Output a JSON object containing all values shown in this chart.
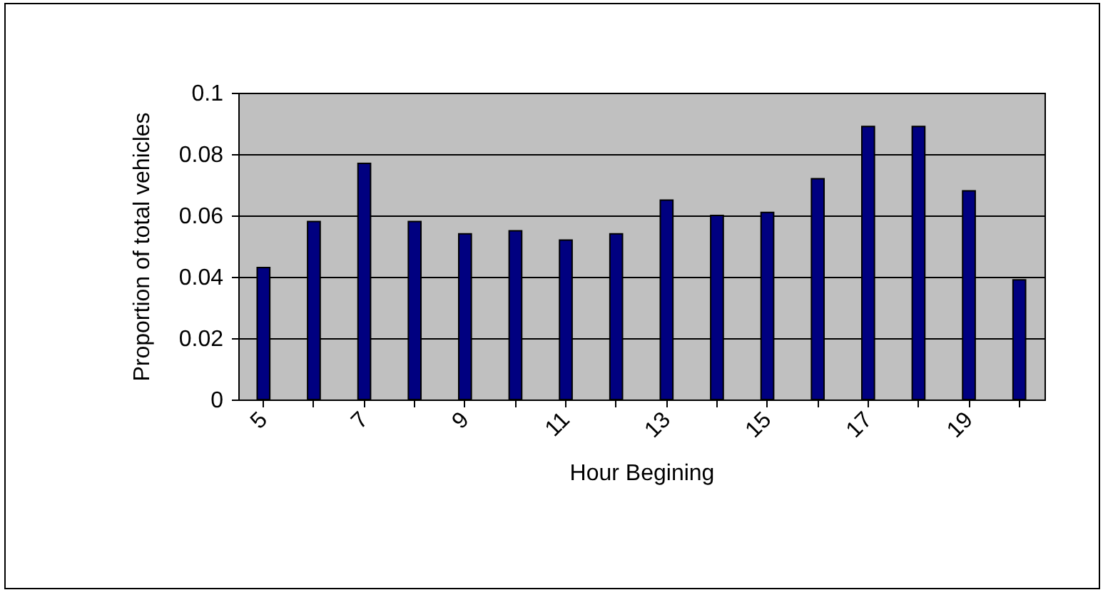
{
  "chart_data": {
    "type": "bar",
    "xlabel": "Hour Begining",
    "ylabel": "Proportion of total vehicles",
    "categories": [
      "5",
      null,
      "7",
      null,
      "9",
      null,
      "11",
      null,
      "13",
      null,
      "15",
      null,
      "17",
      null,
      "19",
      null
    ],
    "values": [
      0.043,
      0.058,
      0.077,
      0.058,
      0.054,
      0.055,
      0.052,
      0.054,
      0.065,
      0.06,
      0.061,
      0.072,
      0.089,
      0.089,
      0.068,
      0.039
    ],
    "color": "#000080",
    "ylim": [
      0,
      0.1
    ],
    "yticks": [
      0,
      0.02,
      0.04,
      0.06,
      0.08,
      0.1
    ],
    "grid": "y"
  }
}
